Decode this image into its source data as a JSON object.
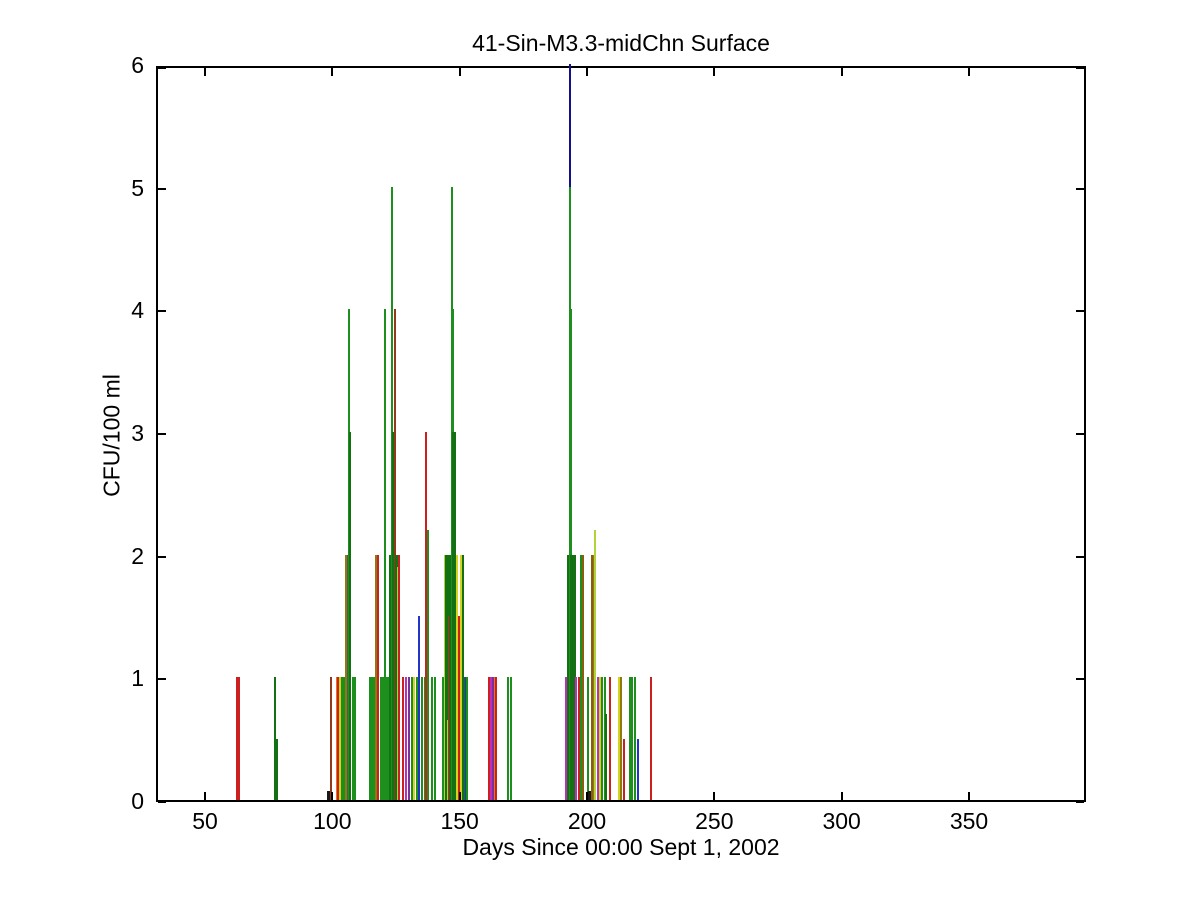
{
  "chart_data": {
    "type": "bar",
    "title": "41-Sin-M3.3-midChn Surface",
    "xlabel": "Days Since 00:00 Sept 1, 2002",
    "ylabel": "CFU/100 ml",
    "xlim": [
      30.76,
      395.94
    ],
    "ylim": [
      0,
      6
    ],
    "xticks": [
      50,
      100,
      150,
      200,
      250,
      300,
      350
    ],
    "yticks": [
      0,
      1,
      2,
      3,
      4,
      5,
      6
    ],
    "grid": false,
    "legend": null,
    "colors": {
      "red": "#cc2020",
      "darkgreen": "#137113",
      "green": "#1d8f1d",
      "lightgreen": "#b2d23a",
      "yellow": "#d4d41f",
      "olive": "#8f7a12",
      "brown": "#8a5d10",
      "maroon": "#93391b",
      "blue": "#2333cc",
      "navy": "#11118f",
      "magenta": "#bb2fbb",
      "purple": "#7a2f9f",
      "orange": "#e5761f",
      "black": "#1a1a1a",
      "gray": "#44604f"
    },
    "bars": [
      {
        "x": 62.4,
        "v": 1,
        "c": "red"
      },
      {
        "x": 63.4,
        "v": 1,
        "c": "red"
      },
      {
        "x": 77.4,
        "v": 1,
        "c": "darkgreen"
      },
      {
        "x": 77.9,
        "v": 0.5,
        "c": "darkgreen",
        "w": 3
      },
      {
        "x": 98.8,
        "v": 0.07,
        "c": "black",
        "w": 4
      },
      {
        "x": 99.6,
        "v": 1,
        "c": "maroon"
      },
      {
        "x": 101.7,
        "v": 1,
        "c": "orange"
      },
      {
        "x": 102.4,
        "v": 1,
        "c": "red"
      },
      {
        "x": 103.1,
        "v": 1,
        "c": "yellow"
      },
      {
        "x": 103.9,
        "v": 1,
        "c": "green"
      },
      {
        "x": 104.6,
        "v": 1,
        "c": "green"
      },
      {
        "x": 105.3,
        "v": 1,
        "c": "green"
      },
      {
        "x": 105.9,
        "v": 2,
        "c": "olive",
        "w": 4
      },
      {
        "x": 106.5,
        "v": 2,
        "c": "gray",
        "w": 4
      },
      {
        "x": 106.7,
        "v": 4,
        "c": "green"
      },
      {
        "x": 107.1,
        "v": 3,
        "c": "darkgreen",
        "w": 2
      },
      {
        "x": 108.1,
        "v": 1,
        "c": "green"
      },
      {
        "x": 108.9,
        "v": 1,
        "c": "green"
      },
      {
        "x": 114.8,
        "v": 1,
        "c": "green"
      },
      {
        "x": 115.6,
        "v": 1,
        "c": "green"
      },
      {
        "x": 116.3,
        "v": 1,
        "c": "green"
      },
      {
        "x": 117.2,
        "v": 2,
        "c": "olive"
      },
      {
        "x": 117.9,
        "v": 2,
        "c": "red"
      },
      {
        "x": 119.0,
        "v": 1,
        "c": "green"
      },
      {
        "x": 119.8,
        "v": 1,
        "c": "green"
      },
      {
        "x": 120.7,
        "v": 4,
        "c": "green"
      },
      {
        "x": 121.3,
        "v": 1,
        "c": "green"
      },
      {
        "x": 122.0,
        "v": 1,
        "c": "green"
      },
      {
        "x": 122.9,
        "v": 2,
        "c": "darkgreen",
        "w": 4
      },
      {
        "x": 123.5,
        "v": 5,
        "c": "green",
        "w": 2
      },
      {
        "x": 123.9,
        "v": 3,
        "c": "darkgreen",
        "w": 3
      },
      {
        "x": 124.5,
        "v": 4,
        "c": "maroon",
        "w": 2
      },
      {
        "x": 125.0,
        "v": 2,
        "c": "darkgreen",
        "w": 3
      },
      {
        "x": 125.6,
        "v": 1.9,
        "c": "lightgreen"
      },
      {
        "x": 126.2,
        "v": 2,
        "c": "red"
      },
      {
        "x": 127.7,
        "v": 1,
        "c": "red"
      },
      {
        "x": 128.9,
        "v": 1,
        "c": "magenta"
      },
      {
        "x": 130.1,
        "v": 1,
        "c": "purple"
      },
      {
        "x": 131.2,
        "v": 1,
        "c": "green"
      },
      {
        "x": 132.1,
        "v": 1,
        "c": "yellow"
      },
      {
        "x": 133.2,
        "v": 1,
        "c": "green"
      },
      {
        "x": 134.0,
        "v": 1.5,
        "c": "blue",
        "w": 2
      },
      {
        "x": 135.2,
        "v": 1,
        "c": "green"
      },
      {
        "x": 136.2,
        "v": 1,
        "c": "green"
      },
      {
        "x": 136.9,
        "v": 3,
        "c": "red"
      },
      {
        "x": 137.7,
        "v": 2.2,
        "c": "green"
      },
      {
        "x": 139.1,
        "v": 1,
        "c": "green"
      },
      {
        "x": 140.3,
        "v": 1,
        "c": "green"
      },
      {
        "x": 143.6,
        "v": 1,
        "c": "green"
      },
      {
        "x": 144.2,
        "v": 2,
        "c": "lightgreen",
        "w": 2
      },
      {
        "x": 144.9,
        "v": 2,
        "c": "darkgreen",
        "w": 4
      },
      {
        "x": 145.3,
        "v": 0.65,
        "c": "lightgreen",
        "w": 2
      },
      {
        "x": 145.9,
        "v": 1.5,
        "c": "red"
      },
      {
        "x": 146.5,
        "v": 2,
        "c": "darkgreen",
        "w": 4
      },
      {
        "x": 147.0,
        "v": 5,
        "c": "green",
        "w": 2
      },
      {
        "x": 147.5,
        "v": 4,
        "c": "green",
        "w": 2
      },
      {
        "x": 147.9,
        "v": 3,
        "c": "darkgreen",
        "w": 4
      },
      {
        "x": 148.5,
        "v": 2,
        "c": "darkgreen",
        "w": 3
      },
      {
        "x": 149.0,
        "v": 2,
        "c": "yellow"
      },
      {
        "x": 149.7,
        "v": 1.5,
        "c": "red"
      },
      {
        "x": 150.4,
        "v": 2,
        "c": "yellow"
      },
      {
        "x": 151.2,
        "v": 2,
        "c": "darkgreen"
      },
      {
        "x": 151.8,
        "v": 1,
        "c": "darkgreen"
      },
      {
        "x": 152.3,
        "v": 1,
        "c": "blue"
      },
      {
        "x": 152.9,
        "v": 1,
        "c": "green"
      },
      {
        "x": 161.5,
        "v": 1,
        "c": "red"
      },
      {
        "x": 162.2,
        "v": 1,
        "c": "magenta"
      },
      {
        "x": 162.9,
        "v": 1,
        "c": "purple"
      },
      {
        "x": 163.7,
        "v": 1,
        "c": "orange"
      },
      {
        "x": 164.4,
        "v": 1,
        "c": "red"
      },
      {
        "x": 168.9,
        "v": 1,
        "c": "green"
      },
      {
        "x": 170.0,
        "v": 1,
        "c": "green"
      },
      {
        "x": 191.8,
        "v": 1,
        "c": "magenta"
      },
      {
        "x": 192.8,
        "v": 2,
        "c": "darkgreen",
        "w": 3
      },
      {
        "x": 193.2,
        "v": 6,
        "c": "navy"
      },
      {
        "x": 193.4,
        "v": 5,
        "c": "green"
      },
      {
        "x": 193.8,
        "v": 4,
        "c": "green",
        "w": 2
      },
      {
        "x": 194.3,
        "v": 2,
        "c": "darkgreen",
        "w": 4
      },
      {
        "x": 194.9,
        "v": 2,
        "c": "darkgreen",
        "w": 3
      },
      {
        "x": 195.6,
        "v": 1,
        "c": "magenta"
      },
      {
        "x": 196.7,
        "v": 1,
        "c": "red"
      },
      {
        "x": 197.7,
        "v": 2,
        "c": "green"
      },
      {
        "x": 198.3,
        "v": 2,
        "c": "brown",
        "w": 2
      },
      {
        "x": 200.4,
        "v": 1,
        "c": "green"
      },
      {
        "x": 201.1,
        "v": 0.07,
        "c": "black",
        "w": 4
      },
      {
        "x": 202.0,
        "v": 2,
        "c": "brown",
        "w": 3
      },
      {
        "x": 202.7,
        "v": 2,
        "c": "olive",
        "w": 2
      },
      {
        "x": 203.3,
        "v": 2.2,
        "c": "lightgreen",
        "w": 2
      },
      {
        "x": 204.3,
        "v": 1,
        "c": "magenta"
      },
      {
        "x": 205.1,
        "v": 1,
        "c": "yellow"
      },
      {
        "x": 205.9,
        "v": 1,
        "c": "green"
      },
      {
        "x": 206.9,
        "v": 1,
        "c": "green"
      },
      {
        "x": 207.3,
        "v": 0.7,
        "c": "darkgreen",
        "w": 2
      },
      {
        "x": 209.0,
        "v": 1,
        "c": "red"
      },
      {
        "x": 212.7,
        "v": 1,
        "c": "yellow"
      },
      {
        "x": 213.4,
        "v": 1,
        "c": "olive"
      },
      {
        "x": 214.6,
        "v": 0.5,
        "c": "red",
        "w": 2
      },
      {
        "x": 216.9,
        "v": 1,
        "c": "green"
      },
      {
        "x": 217.7,
        "v": 1,
        "c": "green"
      },
      {
        "x": 218.9,
        "v": 1,
        "c": "green"
      },
      {
        "x": 220.0,
        "v": 0.5,
        "c": "blue",
        "w": 2
      },
      {
        "x": 225.1,
        "v": 1,
        "c": "red"
      }
    ]
  }
}
